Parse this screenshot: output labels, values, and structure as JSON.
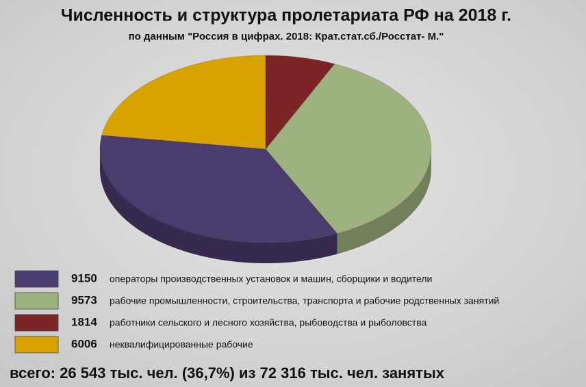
{
  "chart_data": {
    "type": "pie",
    "title": "Численность и структура пролетариата РФ на 2018 г.",
    "subtitle": "по данным \"Россия в цифрах. 2018: Крат.стат.сб./Росстат- М.\"",
    "categories": [
      "операторы производственных установок и машин, сборщики и водители",
      "рабочие промышленности, строительства, транспорта и рабочие родственных занятий",
      "работники сельского и лесного хозяйства, рыбоводства и рыболовства",
      "неквалифицированные рабочие"
    ],
    "values": [
      9150,
      9573,
      1814,
      6006
    ],
    "colors": [
      "#4b3c6e",
      "#9db27f",
      "#7b2526",
      "#d8a300"
    ],
    "note": "всего:  26 543 тыс. чел. (36,7%) из 72 316 тыс. чел. занятых"
  }
}
